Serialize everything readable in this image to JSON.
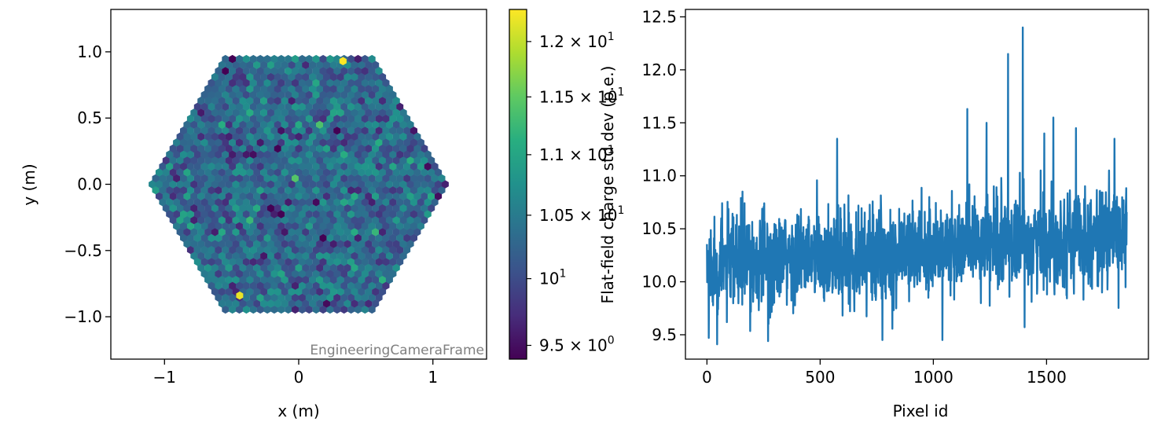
{
  "chart_data": [
    {
      "type": "heatmap",
      "title": "",
      "xlabel": "x  (m)",
      "ylabel": "y  (m)",
      "xlim": [
        -1.4,
        1.4
      ],
      "ylim": [
        -1.32,
        1.32
      ],
      "xticks": [
        -1,
        0,
        1
      ],
      "xtick_labels": [
        "−1",
        "0",
        "1"
      ],
      "yticks": [
        -1.0,
        -0.5,
        0.0,
        0.5,
        1.0
      ],
      "ytick_labels": [
        "−1.0",
        "−0.5",
        "0.0",
        "0.5",
        "1.0"
      ],
      "frame_label": "EngineeringCameraFrame",
      "shape": "hexagonal camera, ~1855 hexagonal pixels",
      "colorbar": {
        "scale": "log",
        "range": [
          9.4,
          12.3
        ],
        "ticks": [
          9.5,
          10,
          10.5,
          11,
          11.5,
          12
        ],
        "tick_labels": [
          "9.5 × 10",
          "10",
          "1.05 × 10",
          "1.1 × 10",
          "1.15 × 10",
          "1.2 × 10"
        ],
        "tick_exponents": [
          "0",
          "1",
          "1",
          "1",
          "1",
          "1"
        ],
        "colormap": "viridis"
      },
      "hot_pixels": [
        {
          "x": 0.33,
          "y": 0.93,
          "value": 12.3
        },
        {
          "x": -0.44,
          "y": -0.84,
          "value": 12.2
        }
      ]
    },
    {
      "type": "line",
      "title": "",
      "xlabel": "Pixel id",
      "ylabel": "Flat-field charge std dev (p.e.)",
      "xlim": [
        -95,
        1950
      ],
      "ylim": [
        9.27,
        12.57
      ],
      "xticks": [
        0,
        500,
        1000,
        1500
      ],
      "xtick_labels": [
        "0",
        "500",
        "1000",
        "1500"
      ],
      "yticks": [
        9.5,
        10.0,
        10.5,
        11.0,
        11.5,
        12.0,
        12.5
      ],
      "ytick_labels": [
        "9.5",
        "10.0",
        "10.5",
        "11.0",
        "11.5",
        "12.0",
        "12.5"
      ],
      "color": "#1f77b4",
      "n_points": 1855,
      "x_range": [
        0,
        1854
      ],
      "peaks": [
        {
          "x": 1395,
          "y": 12.4
        },
        {
          "x": 1330,
          "y": 12.15
        },
        {
          "x": 1150,
          "y": 11.63
        },
        {
          "x": 1530,
          "y": 11.55
        },
        {
          "x": 1235,
          "y": 11.5
        },
        {
          "x": 1630,
          "y": 11.45
        },
        {
          "x": 575,
          "y": 11.35
        },
        {
          "x": 1800,
          "y": 11.35
        },
        {
          "x": 1490,
          "y": 11.4
        }
      ],
      "troughs": [
        {
          "x": 45,
          "y": 9.41
        },
        {
          "x": 1040,
          "y": 9.45
        },
        {
          "x": 270,
          "y": 9.44
        },
        {
          "x": 775,
          "y": 9.45
        },
        {
          "x": 8,
          "y": 9.47
        }
      ],
      "baseline_start": 10.15,
      "baseline_end": 10.45
    }
  ]
}
